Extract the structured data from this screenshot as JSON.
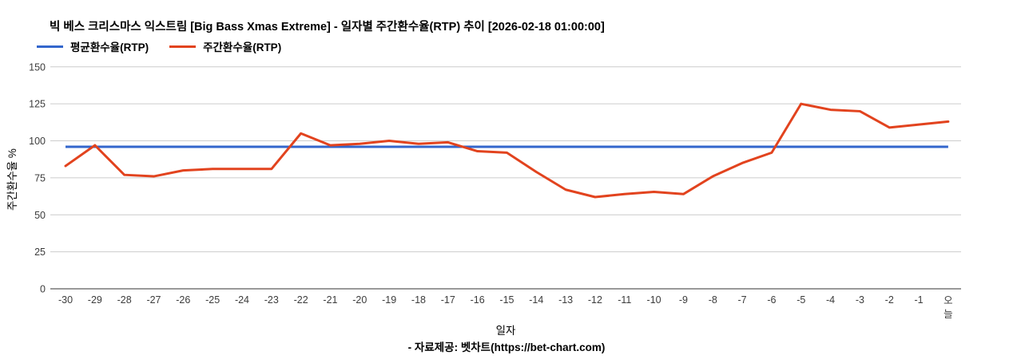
{
  "header": {
    "title": "빅 베스 크리스마스 익스트림 [Big Bass Xmas Extreme] - 일자별 주간환수율(RTP) 추이 [2026-02-18 01:00:00]"
  },
  "legend": [
    {
      "label": "평균환수율(RTP)",
      "color": "#3366cc"
    },
    {
      "label": "주간환수율(RTP)",
      "color": "#e2431e"
    }
  ],
  "chart_data": {
    "type": "line",
    "title": "빅 베스 크리스마스 익스트림 [Big Bass Xmas Extreme] - 일자별 주간환수율(RTP) 추이 [2026-02-18 01:00:00]",
    "xlabel": "일자",
    "ylabel": "주간환수율 %",
    "x_categories": [
      "-30",
      "-29",
      "-28",
      "-27",
      "-26",
      "-25",
      "-24",
      "-23",
      "-22",
      "-21",
      "-20",
      "-19",
      "-18",
      "-17",
      "-16",
      "-15",
      "-14",
      "-13",
      "-12",
      "-11",
      "-10",
      "-9",
      "-8",
      "-7",
      "-6",
      "-5",
      "-4",
      "-3",
      "-2",
      "-1",
      "오늘"
    ],
    "series": [
      {
        "name": "평균환수율(RTP)",
        "type": "constant",
        "value": 96,
        "color": "#3366cc"
      },
      {
        "name": "주간환수율(RTP)",
        "type": "line",
        "color": "#e2431e",
        "values": [
          83,
          97,
          77,
          76,
          80,
          81,
          81,
          81,
          105,
          97,
          98,
          100,
          98,
          99,
          93,
          92,
          79,
          67,
          62,
          64,
          65.5,
          64,
          76,
          85,
          92,
          125,
          121,
          120,
          109,
          111,
          113
        ]
      }
    ],
    "ylim": [
      0,
      150
    ],
    "yticks": [
      0,
      25,
      50,
      75,
      100,
      125,
      150
    ],
    "grid": true,
    "legend_position": "top-left",
    "colors": {
      "gridline": "#cccccc",
      "baseline": "#333333",
      "tick_text": "#3c3c3c"
    }
  },
  "footer": {
    "source": "- 자료제공: 벳차트(https://bet-chart.com)"
  }
}
